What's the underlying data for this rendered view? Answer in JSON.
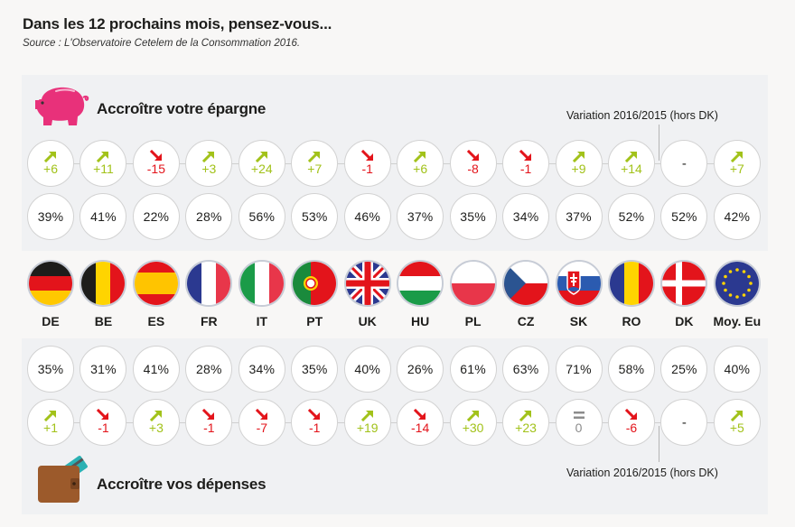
{
  "title": "Dans les 12 prochains mois, pensez-vous...",
  "source": "Source : L'Observatoire Cetelem de la Consommation 2016.",
  "sections": {
    "savings": {
      "title": "Accroître votre épargne",
      "icon": "piggy-bank-icon",
      "variation_label": "Variation 2016/2015 (hors DK)"
    },
    "spending": {
      "title": "Accroître vos dépenses",
      "icon": "wallet-icon",
      "variation_label": "Variation 2016/2015 (hors DK)"
    }
  },
  "colors": {
    "up": "#a2c21a",
    "down": "#e3141b",
    "neutral": "#8c8c8c",
    "pig": "#e8317a",
    "panel": "#f0f1f3"
  },
  "chart_data": {
    "type": "table",
    "title": "Dans les 12 prochains mois, pensez-vous...",
    "subtitle": "Source : L'Observatoire Cetelem de la Consommation 2016.",
    "categories": [
      "DE",
      "BE",
      "ES",
      "FR",
      "IT",
      "PT",
      "UK",
      "HU",
      "PL",
      "CZ",
      "SK",
      "RO",
      "DK",
      "Moy. Eu"
    ],
    "series": [
      {
        "name": "Accroître votre épargne",
        "values_pct": [
          "39%",
          "41%",
          "22%",
          "28%",
          "56%",
          "53%",
          "46%",
          "37%",
          "35%",
          "34%",
          "37%",
          "52%",
          "52%",
          "42%"
        ],
        "variation": [
          "+6",
          "+11",
          "-15",
          "+3",
          "+24",
          "+7",
          "-1",
          "+6",
          "-8",
          "-1",
          "+9",
          "+14",
          "-",
          "+7"
        ],
        "trend": [
          "up",
          "up",
          "down",
          "up",
          "up",
          "up",
          "down",
          "up",
          "down",
          "down",
          "up",
          "up",
          "none",
          "up"
        ]
      },
      {
        "name": "Accroître vos dépenses",
        "values_pct": [
          "35%",
          "31%",
          "41%",
          "28%",
          "34%",
          "35%",
          "40%",
          "26%",
          "61%",
          "63%",
          "71%",
          "58%",
          "25%",
          "40%"
        ],
        "variation": [
          "+1",
          "-1",
          "+3",
          "-1",
          "-7",
          "-1",
          "+19",
          "-14",
          "+30",
          "+23",
          "0",
          "-6",
          "-",
          "+5"
        ],
        "trend": [
          "up",
          "down",
          "up",
          "down",
          "down",
          "down",
          "up",
          "down",
          "up",
          "up",
          "equal",
          "down",
          "none",
          "up"
        ]
      }
    ],
    "variation_note": "Variation 2016/2015 (hors DK)"
  },
  "flags": [
    {
      "code": "DE",
      "icon": "flag-germany-icon"
    },
    {
      "code": "BE",
      "icon": "flag-belgium-icon"
    },
    {
      "code": "ES",
      "icon": "flag-spain-icon"
    },
    {
      "code": "FR",
      "icon": "flag-france-icon"
    },
    {
      "code": "IT",
      "icon": "flag-italy-icon"
    },
    {
      "code": "PT",
      "icon": "flag-portugal-icon"
    },
    {
      "code": "UK",
      "icon": "flag-uk-icon"
    },
    {
      "code": "HU",
      "icon": "flag-hungary-icon"
    },
    {
      "code": "PL",
      "icon": "flag-poland-icon"
    },
    {
      "code": "CZ",
      "icon": "flag-czech-icon"
    },
    {
      "code": "SK",
      "icon": "flag-slovakia-icon"
    },
    {
      "code": "RO",
      "icon": "flag-romania-icon"
    },
    {
      "code": "DK",
      "icon": "flag-denmark-icon"
    },
    {
      "code": "Moy. Eu",
      "icon": "flag-eu-icon"
    }
  ]
}
